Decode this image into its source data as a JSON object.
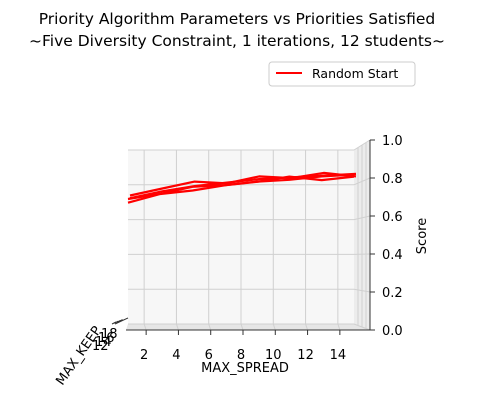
{
  "chart_data": {
    "type": "line",
    "title": "Priority Algorithm Parameters vs Priorities Satisfied",
    "subtitle": "~Five Diversity Constraint, 1 iterations, 12 students~",
    "xlabel": "MAX_SPREAD",
    "ylabel": "MAX_KEEP",
    "zlabel": "Score",
    "x_ticks": [
      "2",
      "4",
      "6",
      "8",
      "10",
      "12",
      "14"
    ],
    "y_ticks": [
      "12",
      "14",
      "16",
      "18"
    ],
    "z_ticks": [
      "0.0",
      "0.2",
      "0.4",
      "0.6",
      "0.8",
      "1.0"
    ],
    "xlim": [
      1,
      15
    ],
    "zlim": [
      0,
      1
    ],
    "grid": true,
    "legend_position": "top-right",
    "series": [
      {
        "name": "Random Start",
        "color": "#ff0000",
        "lines": [
          {
            "x": [
              1,
              3,
              5,
              7,
              9,
              11,
              13,
              15
            ],
            "z": [
              0.73,
              0.76,
              0.8,
              0.81,
              0.83,
              0.84,
              0.86,
              0.87
            ]
          },
          {
            "x": [
              1,
              3,
              5,
              7,
              9,
              11,
              13,
              15
            ],
            "z": [
              0.74,
              0.78,
              0.81,
              0.83,
              0.85,
              0.86,
              0.87,
              0.88
            ]
          },
          {
            "x": [
              1,
              3,
              5,
              7,
              9,
              11,
              13,
              15
            ],
            "z": [
              0.72,
              0.77,
              0.79,
              0.82,
              0.84,
              0.87,
              0.85,
              0.87
            ]
          },
          {
            "x": [
              1,
              3,
              5,
              7,
              9,
              11,
              13,
              15
            ],
            "z": [
              0.75,
              0.79,
              0.83,
              0.82,
              0.86,
              0.85,
              0.88,
              0.86
            ]
          }
        ]
      }
    ]
  }
}
